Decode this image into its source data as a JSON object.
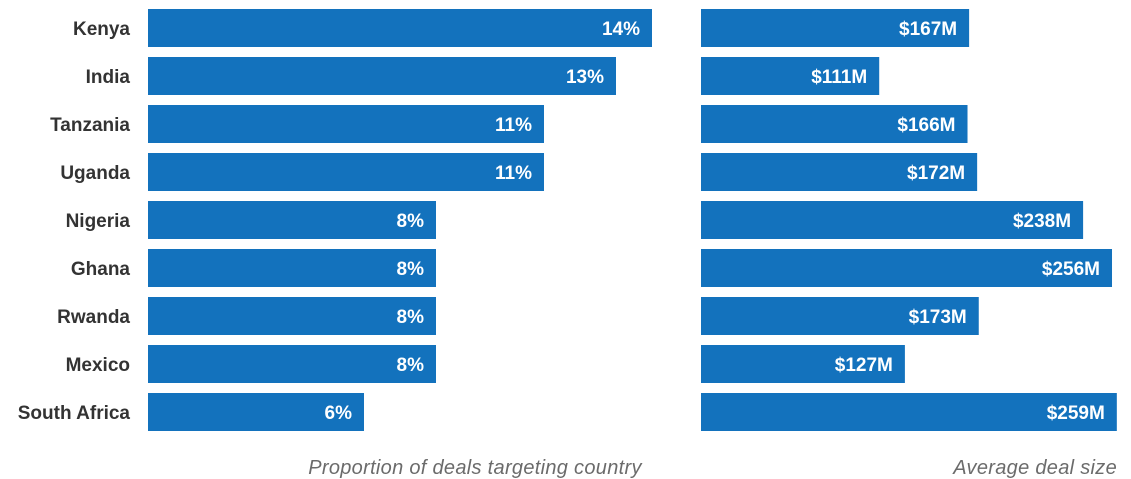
{
  "chart_data": {
    "type": "bar",
    "orientation": "horizontal",
    "categories": [
      "Kenya",
      "India",
      "Tanzania",
      "Uganda",
      "Nigeria",
      "Ghana",
      "Rwanda",
      "Mexico",
      "South Africa"
    ],
    "panels": [
      {
        "xlabel": "Proportion of deals targeting country",
        "values": [
          14,
          13,
          11,
          11,
          8,
          8,
          8,
          8,
          6
        ],
        "value_labels": [
          "14%",
          "13%",
          "11%",
          "11%",
          "8%",
          "8%",
          "8%",
          "8%",
          "6%"
        ],
        "unit": "%"
      },
      {
        "xlabel": "Average deal size",
        "values": [
          167,
          111,
          166,
          172,
          238,
          256,
          173,
          127,
          259
        ],
        "value_labels": [
          "$167M",
          "$111M",
          "$166M",
          "$172M",
          "$238M",
          "$256M",
          "$173M",
          "$127M",
          "$259M"
        ],
        "unit": "$M"
      }
    ],
    "grid": false,
    "legend": "none",
    "bar_color": "#1372BD"
  }
}
